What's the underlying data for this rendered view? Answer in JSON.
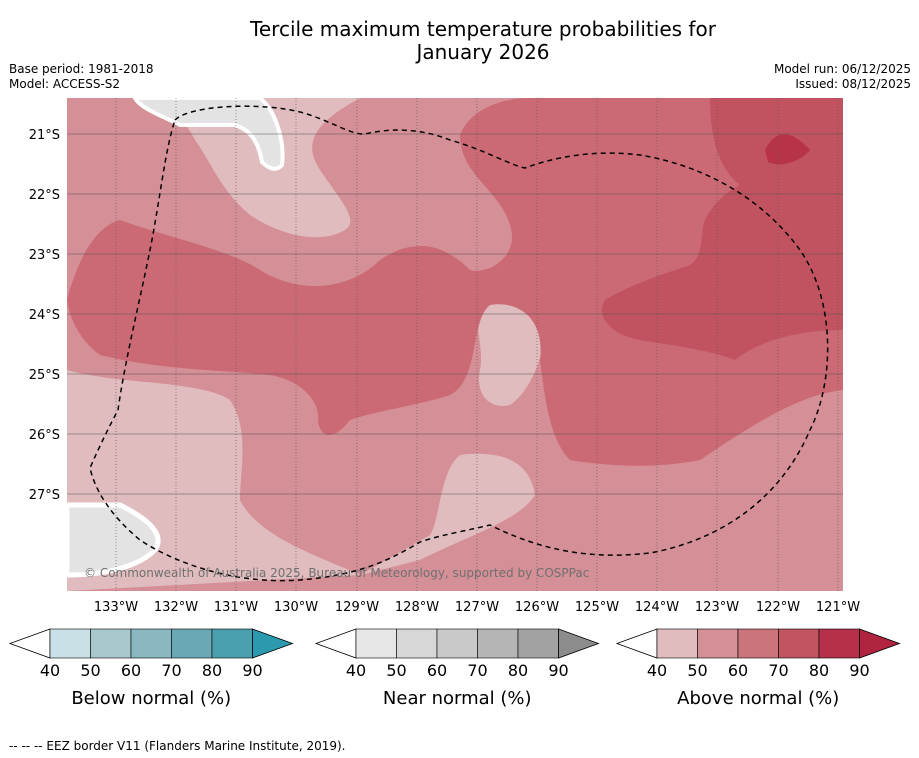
{
  "title": {
    "line1": "Tercile maximum temperature probabilities for",
    "line2": "January 2026"
  },
  "meta": {
    "base_period": "Base period: 1981-2018",
    "model": "Model: ACCESS-S2",
    "model_run": "Model run: 06/12/2025",
    "issued": "Issued: 08/12/2025"
  },
  "map": {
    "lat_labels": [
      "21°S",
      "22°S",
      "23°S",
      "24°S",
      "25°S",
      "26°S",
      "27°S"
    ],
    "lon_labels": [
      "133°W",
      "132°W",
      "131°W",
      "130°W",
      "129°W",
      "128°W",
      "127°W",
      "126°W",
      "125°W",
      "124°W",
      "123°W",
      "122°W",
      "121°W"
    ],
    "copyright": "© Commonwealth of Australia 2025, Bureau of Meteorology, supported by COSPPac",
    "colors": {
      "above_50": "#d58f96",
      "above_60": "#cb6a74",
      "above_70": "#c0535f",
      "above_80": "#b73347",
      "above_40": "#e0bcbf",
      "near_40": "#e3e3e3"
    }
  },
  "colorbars": [
    {
      "title": "Below normal (%)",
      "ticks": [
        "40",
        "50",
        "60",
        "70",
        "80",
        "90"
      ],
      "colors": [
        "#c9e0e6",
        "#a8c8ce",
        "#89b7c2",
        "#6aa8b6",
        "#4ba0b0",
        "#2b9aae"
      ]
    },
    {
      "title": "Near normal (%)",
      "ticks": [
        "40",
        "50",
        "60",
        "70",
        "80",
        "90"
      ],
      "colors": [
        "#e6e6e6",
        "#d7d7d7",
        "#c9c9c9",
        "#b5b5b5",
        "#a2a2a2",
        "#8c8c8c"
      ]
    },
    {
      "title": "Above normal (%)",
      "ticks": [
        "40",
        "50",
        "60",
        "70",
        "80",
        "90"
      ],
      "colors": [
        "#e0bcbf",
        "#d58f96",
        "#cb747c",
        "#c05560",
        "#b5304a",
        "#b0243f"
      ]
    }
  ],
  "footnote": "--  --  -- EEZ border V11 (Flanders Marine Institute, 2019)."
}
